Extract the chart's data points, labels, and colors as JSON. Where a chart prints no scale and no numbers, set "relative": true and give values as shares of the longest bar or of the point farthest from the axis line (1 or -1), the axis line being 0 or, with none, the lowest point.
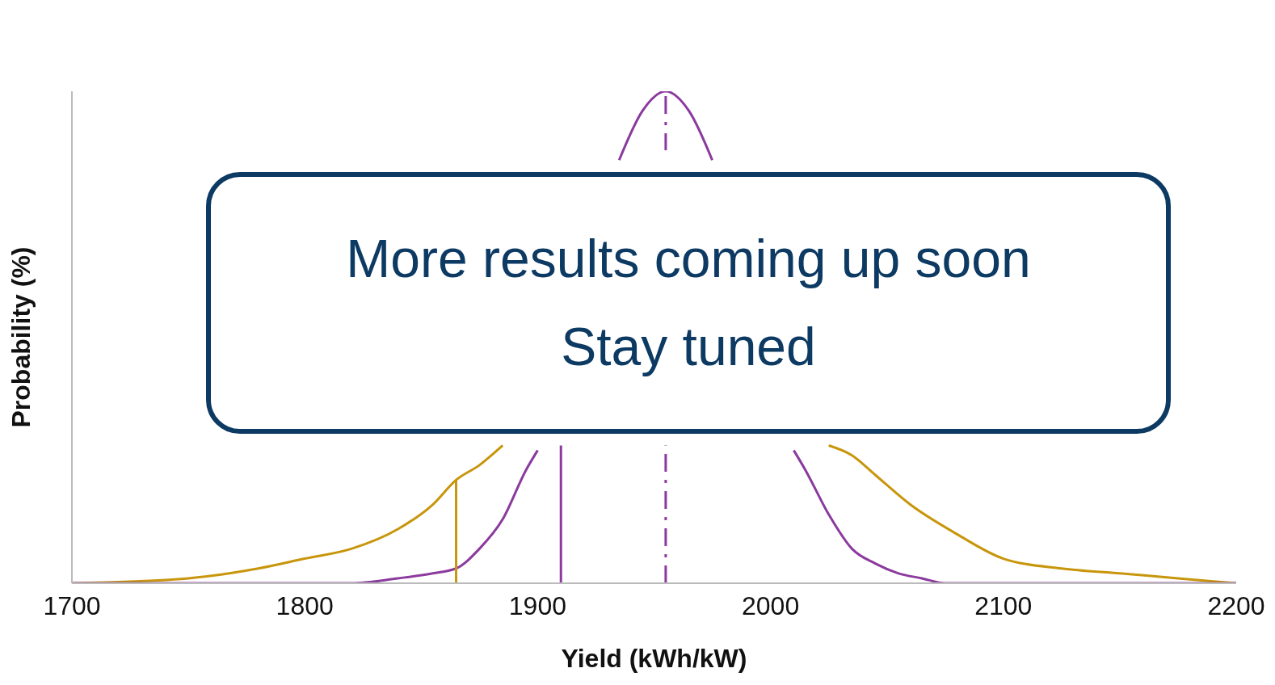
{
  "chart_data": {
    "type": "line",
    "relative": true,
    "xlabel": "Yield (kWh/kW)",
    "ylabel": "Probability (%)",
    "xlim": [
      1700,
      2200
    ],
    "xticks": [
      1700,
      1800,
      1900,
      2000,
      2100,
      2200
    ],
    "annotations": [
      "More results coming up soon",
      "Stay tuned"
    ],
    "series": [
      {
        "color": "#c8960c",
        "x": [
          1700,
          1750,
          1780,
          1800,
          1820,
          1840,
          1855,
          1865,
          1875,
          1885,
          1895,
          2015,
          2025,
          2035,
          2045,
          2060,
          2080,
          2100,
          2125,
          2150,
          2175,
          2200
        ],
        "values": [
          0,
          0.01,
          0.03,
          0.05,
          0.07,
          0.11,
          0.16,
          0.21,
          0.24,
          0.28,
          null,
          null,
          0.28,
          0.26,
          0.22,
          0.16,
          0.1,
          0.05,
          0.03,
          0.02,
          0.01,
          0
        ]
      },
      {
        "color": "#8b3a9e",
        "x": [
          1700,
          1750,
          1800,
          1820,
          1840,
          1855,
          1865,
          1875,
          1885,
          1895,
          1900,
          1910,
          1935,
          1945,
          1955,
          1965,
          1975,
          1990,
          2010,
          2015,
          2025,
          2035,
          2045,
          2055,
          2065,
          2075,
          2090,
          2150,
          2200
        ],
        "values": [
          0,
          0,
          0,
          0,
          0.01,
          0.02,
          0.03,
          0.07,
          0.13,
          0.23,
          0.27,
          null,
          0.86,
          0.96,
          1,
          0.96,
          0.86,
          null,
          0.27,
          0.23,
          0.14,
          0.07,
          0.04,
          0.02,
          0.01,
          0,
          0,
          0,
          0
        ]
      },
      {
        "color": "#c8960c",
        "x": [
          1865,
          1865
        ],
        "values": [
          0,
          0.21
        ]
      },
      {
        "color": "#8b3a9e",
        "x": [
          1910,
          1910
        ],
        "values": [
          0,
          0.28
        ]
      },
      {
        "color": "#8b3a9e",
        "line_style": "dashed",
        "x": [
          1955,
          1955
        ],
        "values": [
          0,
          0.28
        ]
      },
      {
        "color": "#8b3a9e",
        "line_style": "dashed",
        "x": [
          1955,
          1955
        ],
        "values": [
          0.99,
          0.88
        ]
      }
    ]
  }
}
